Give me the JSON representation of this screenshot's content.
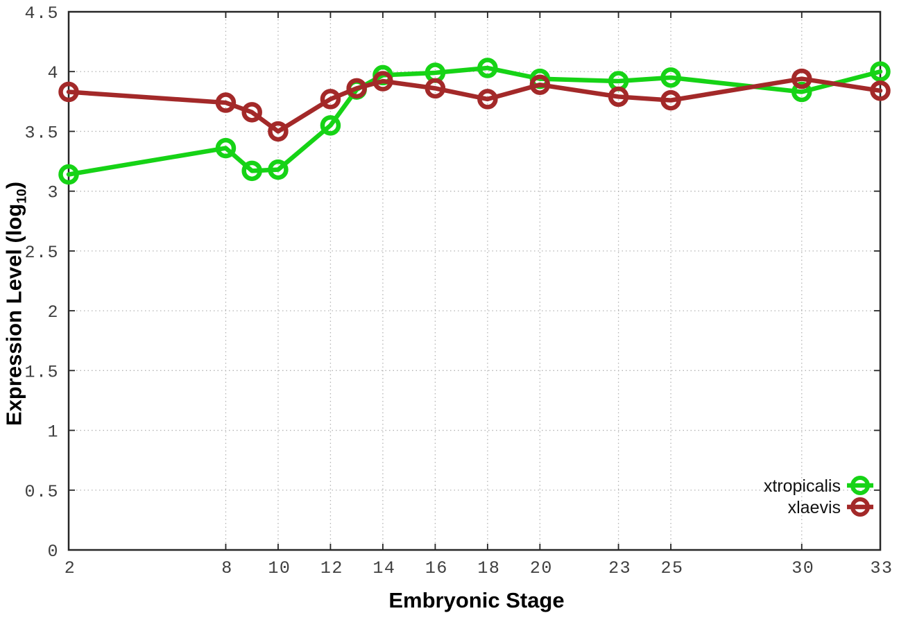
{
  "chart_data": {
    "type": "line",
    "title": "",
    "xlabel": "Embryonic Stage",
    "ylabel": "Expression Level (log10)",
    "ylabel_parts": {
      "main": "Expression Level (log",
      "sub": "10",
      "end": ")"
    },
    "x": [
      2,
      8,
      9,
      10,
      12,
      13,
      14,
      16,
      18,
      20,
      23,
      25,
      30,
      33
    ],
    "series": [
      {
        "name": "xtropicalis",
        "color": "#16d316",
        "values": [
          3.14,
          3.36,
          3.17,
          3.18,
          3.55,
          3.85,
          3.97,
          3.99,
          4.03,
          3.94,
          3.92,
          3.95,
          3.83,
          4.0
        ]
      },
      {
        "name": "xlaevis",
        "color": "#a32929",
        "values": [
          3.83,
          3.74,
          3.66,
          3.5,
          3.77,
          3.86,
          3.92,
          3.86,
          3.77,
          3.89,
          3.79,
          3.76,
          3.94,
          3.84
        ]
      }
    ],
    "xticks": [
      2,
      8,
      10,
      12,
      14,
      16,
      18,
      20,
      23,
      25,
      30,
      33
    ],
    "xtick_labels": [
      "2",
      "8",
      "10",
      "12",
      "14",
      "16",
      "18",
      "20",
      "23",
      "25",
      "30",
      "33"
    ],
    "yticks": [
      0,
      0.5,
      1,
      1.5,
      2,
      2.5,
      3,
      3.5,
      4,
      4.5
    ],
    "ytick_labels": [
      "0",
      "0.5",
      "1",
      "1.5",
      "2",
      "2.5",
      "3",
      "3.5",
      "4",
      "4.5"
    ],
    "xlim": [
      2,
      33
    ],
    "ylim": [
      0,
      4.5
    ],
    "grid": true,
    "legend_position": "bottom-right",
    "legend_entries": [
      "xtropicalis",
      "xlaevis"
    ]
  },
  "colors": {
    "background": "#ffffff",
    "border": "#262626",
    "grid": "#b3b3b3",
    "tick_label": "#3f3f3f",
    "xtropicalis": "#16d316",
    "xlaevis": "#a32929"
  }
}
